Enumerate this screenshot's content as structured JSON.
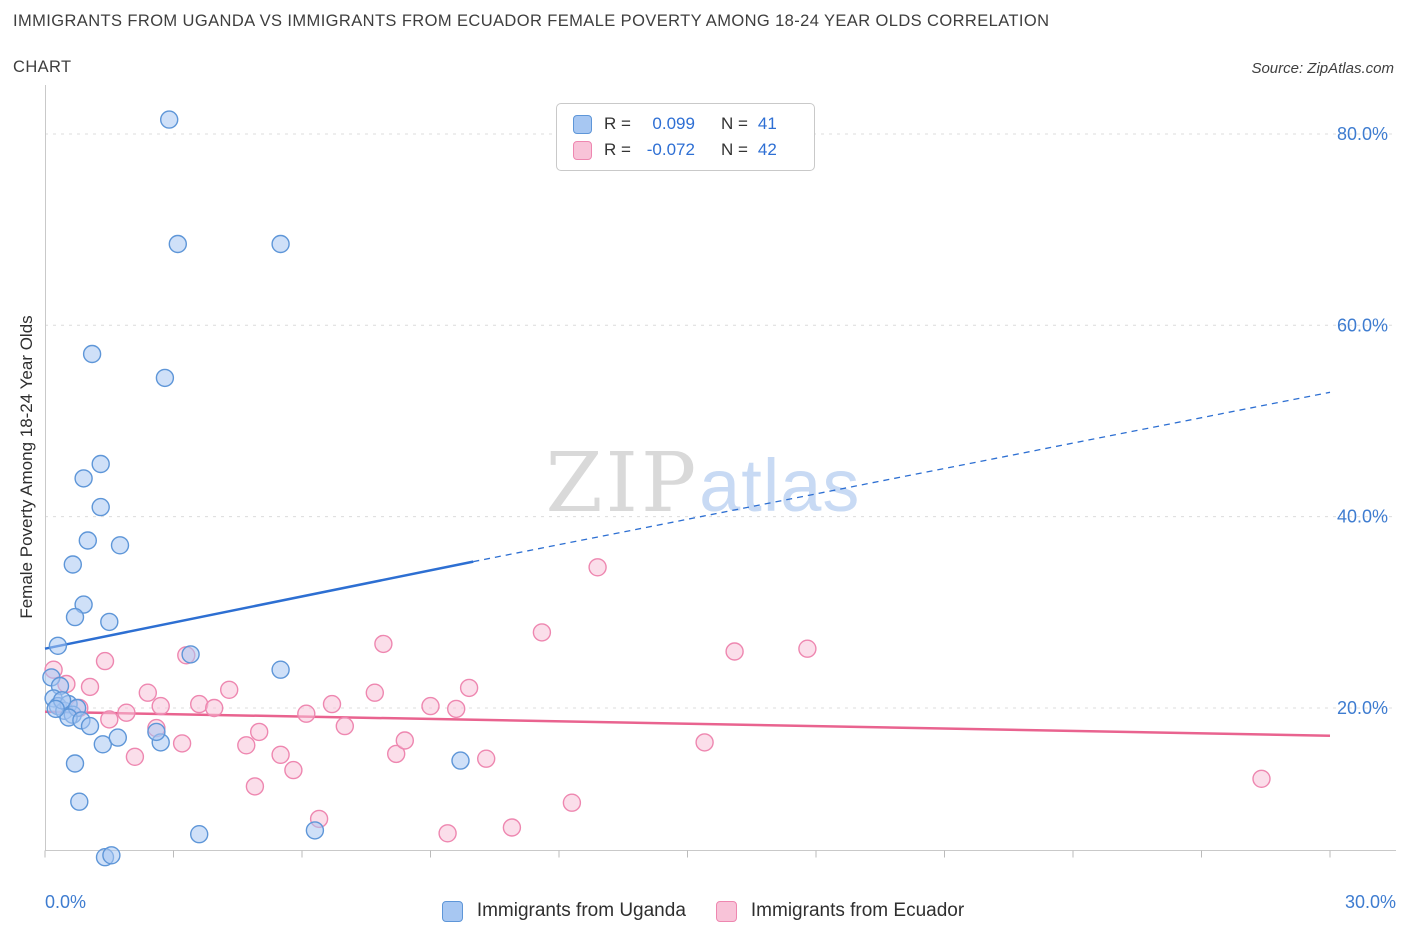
{
  "header": {
    "title_line1": "IMMIGRANTS FROM UGANDA VS IMMIGRANTS FROM ECUADOR FEMALE POVERTY AMONG 18-24 YEAR OLDS CORRELATION",
    "title_line2": "CHART",
    "source": "Source: ZipAtlas.com"
  },
  "watermark": {
    "part1": "ZIP",
    "part2": "atlas"
  },
  "stats_legend": {
    "rows": [
      {
        "r_label": "R =",
        "r": "0.099",
        "n_label": "N =",
        "n": "41"
      },
      {
        "r_label": "R =",
        "r": "-0.072",
        "n_label": "N =",
        "n": "42"
      }
    ]
  },
  "bottom_legend": {
    "items": [
      {
        "label": "Immigrants from Uganda"
      },
      {
        "label": "Immigrants from Ecuador"
      }
    ]
  },
  "colors": {
    "axis_tick_label": "#3e7cd0",
    "gridline": "#dcdcdc",
    "axis_line": "#c9c9c9",
    "stat_value": "#2e6fd4"
  },
  "chart_data": {
    "type": "scatter",
    "title": "Immigrants from Uganda vs Immigrants from Ecuador Female Poverty Among 18-24 Year Olds Correlation",
    "xlabel": "",
    "ylabel": "Female Poverty Among 18-24 Year Olds",
    "xlim": [
      0,
      30
    ],
    "ylim": [
      0,
      85
    ],
    "x_unit": "%",
    "y_unit": "%",
    "grid": "horizontal-dashed",
    "legend_position": "bottom",
    "x_ticks": [
      {
        "value": 0,
        "label": "0.0%"
      },
      {
        "value": 30,
        "label": "30.0%"
      }
    ],
    "y_ticks": [
      {
        "value": 80,
        "label": "80.0%"
      },
      {
        "value": 60,
        "label": "60.0%"
      },
      {
        "value": 40,
        "label": "40.0%"
      },
      {
        "value": 20,
        "label": "20.0%"
      }
    ],
    "series": [
      {
        "id": "ecuador",
        "name": "Immigrants from Ecuador",
        "R": -0.072,
        "N": 42,
        "fill": "#F8C3D8",
        "stroke": "#EE87B0",
        "line_color": "#E9638F",
        "trend_solid": [
          [
            0,
            19.6
          ],
          [
            30,
            17.1
          ]
        ],
        "points": [
          [
            0.2,
            24.0
          ],
          [
            0.5,
            22.5
          ],
          [
            0.8,
            20.0
          ],
          [
            1.05,
            22.2
          ],
          [
            1.4,
            24.9
          ],
          [
            1.5,
            18.8
          ],
          [
            1.9,
            19.5
          ],
          [
            2.1,
            14.9
          ],
          [
            2.4,
            21.6
          ],
          [
            2.6,
            17.9
          ],
          [
            2.7,
            20.2
          ],
          [
            3.2,
            16.3
          ],
          [
            3.3,
            25.5
          ],
          [
            3.6,
            20.4
          ],
          [
            3.95,
            20.0
          ],
          [
            4.3,
            21.9
          ],
          [
            4.7,
            16.1
          ],
          [
            5.0,
            17.5
          ],
          [
            4.9,
            11.8
          ],
          [
            5.5,
            15.1
          ],
          [
            5.8,
            13.5
          ],
          [
            6.1,
            19.4
          ],
          [
            6.4,
            8.4
          ],
          [
            6.7,
            20.4
          ],
          [
            7.0,
            18.1
          ],
          [
            7.7,
            21.6
          ],
          [
            7.9,
            26.7
          ],
          [
            8.2,
            15.2
          ],
          [
            8.4,
            16.6
          ],
          [
            9.0,
            20.2
          ],
          [
            9.4,
            6.9
          ],
          [
            9.6,
            19.9
          ],
          [
            9.9,
            22.1
          ],
          [
            10.3,
            14.7
          ],
          [
            10.9,
            7.5
          ],
          [
            11.6,
            27.9
          ],
          [
            12.3,
            10.1
          ],
          [
            12.9,
            34.7
          ],
          [
            15.4,
            16.4
          ],
          [
            16.1,
            25.9
          ],
          [
            17.8,
            26.2
          ],
          [
            28.4,
            12.6
          ]
        ]
      },
      {
        "id": "uganda",
        "name": "Immigrants from Uganda",
        "R": 0.099,
        "N": 41,
        "fill": "#A7C7F2",
        "stroke": "#5E96D8",
        "line_color": "#2D6FD2",
        "trend_solid": [
          [
            0,
            26.2
          ],
          [
            10,
            35.3
          ]
        ],
        "trend_dashed": [
          [
            10,
            35.3
          ],
          [
            30,
            53.0
          ]
        ],
        "points": [
          [
            2.9,
            81.5
          ],
          [
            3.1,
            68.5
          ],
          [
            5.5,
            68.5
          ],
          [
            1.1,
            57.0
          ],
          [
            2.8,
            54.5
          ],
          [
            1.3,
            45.5
          ],
          [
            0.9,
            44.0
          ],
          [
            1.3,
            41.0
          ],
          [
            1.0,
            37.5
          ],
          [
            1.75,
            37.0
          ],
          [
            0.65,
            35.0
          ],
          [
            0.9,
            30.8
          ],
          [
            0.7,
            29.5
          ],
          [
            1.5,
            29.0
          ],
          [
            0.3,
            26.5
          ],
          [
            3.4,
            25.6
          ],
          [
            5.5,
            24.0
          ],
          [
            0.15,
            23.2
          ],
          [
            0.35,
            22.3
          ],
          [
            0.2,
            21.0
          ],
          [
            0.3,
            20.2
          ],
          [
            0.45,
            19.7
          ],
          [
            0.55,
            20.4
          ],
          [
            0.65,
            19.3
          ],
          [
            0.75,
            20.0
          ],
          [
            0.4,
            20.8
          ],
          [
            0.55,
            19.0
          ],
          [
            0.25,
            19.9
          ],
          [
            0.85,
            18.7
          ],
          [
            1.05,
            18.1
          ],
          [
            1.35,
            16.2
          ],
          [
            1.7,
            16.9
          ],
          [
            2.7,
            16.4
          ],
          [
            0.7,
            14.2
          ],
          [
            9.7,
            14.5
          ],
          [
            0.8,
            10.2
          ],
          [
            1.4,
            4.4
          ],
          [
            1.55,
            4.6
          ],
          [
            3.6,
            6.8
          ],
          [
            6.3,
            7.2
          ],
          [
            2.6,
            17.5
          ]
        ]
      }
    ]
  }
}
